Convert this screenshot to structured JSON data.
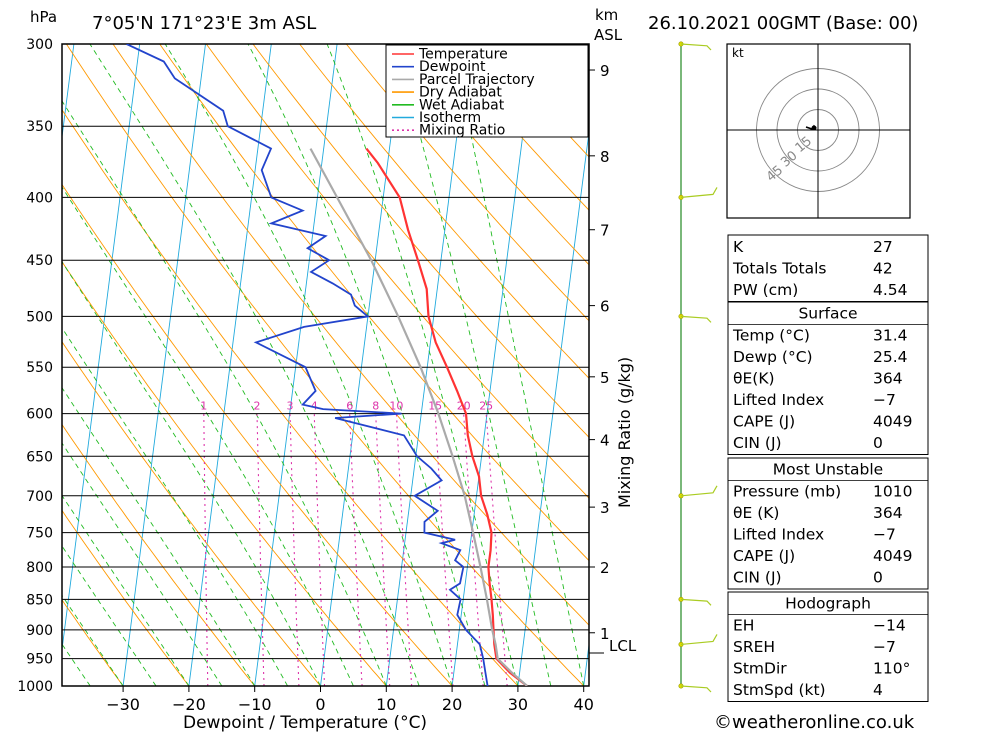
{
  "header": {
    "pressure_unit": "hPa",
    "location": "7°05'N  171°23'E  3m  ASL",
    "km_unit": "km",
    "asl_unit": "ASL",
    "datetime": "26.10.2021  00GMT  (Base: 00)"
  },
  "footer": {
    "x_label": "Dewpoint / Temperature (°C)",
    "copyright": "©weatheronline.co.uk"
  },
  "mixing_ratio_axis_label": "Mixing Ratio (g/kg)",
  "lcl_label": "LCL",
  "legend": [
    {
      "label": "Temperature",
      "color": "#ff3333"
    },
    {
      "label": "Dewpoint",
      "color": "#2244cc"
    },
    {
      "label": "Parcel Trajectory",
      "color": "#aaaaaa"
    },
    {
      "label": "Dry Adiabat",
      "color": "#ff9900"
    },
    {
      "label": "Wet Adiabat",
      "color": "#22bb22"
    },
    {
      "label": "Isotherm",
      "color": "#22aadd"
    },
    {
      "label": "Mixing Ratio",
      "color": "#dd33aa"
    }
  ],
  "chart_data": {
    "type": "line",
    "pressure_levels": [
      300,
      350,
      400,
      450,
      500,
      550,
      600,
      650,
      700,
      750,
      800,
      850,
      900,
      950,
      1000
    ],
    "temp_ticks": [
      -30,
      -20,
      -10,
      0,
      10,
      20,
      30,
      40
    ],
    "xlim": [
      -40,
      40
    ],
    "ylim_hpa": [
      1000,
      300
    ],
    "km_ticks": [
      {
        "label": "9",
        "p": 315
      },
      {
        "label": "8",
        "p": 370
      },
      {
        "label": "7",
        "p": 425
      },
      {
        "label": "6",
        "p": 490
      },
      {
        "label": "5",
        "p": 560
      },
      {
        "label": "4",
        "p": 630
      },
      {
        "label": "3",
        "p": 715
      },
      {
        "label": "2",
        "p": 800
      },
      {
        "label": "1",
        "p": 905
      }
    ],
    "lcl_hpa": 940,
    "mixing_ratio_labels": [
      "1",
      "2",
      "3",
      "4",
      "6",
      "8",
      "10",
      "15",
      "20",
      "25"
    ],
    "mixing_ratio_values": [
      1,
      2,
      3,
      4,
      6,
      8,
      10,
      15,
      20,
      25
    ],
    "series": [
      {
        "name": "Temperature",
        "points": [
          [
            1000,
            31.4
          ],
          [
            975,
            28.5
          ],
          [
            950,
            26.2
          ],
          [
            925,
            25.6
          ],
          [
            900,
            25.2
          ],
          [
            875,
            24.8
          ],
          [
            850,
            24.3
          ],
          [
            825,
            23.7
          ],
          [
            800,
            23.2
          ],
          [
            775,
            23.2
          ],
          [
            750,
            23.0
          ],
          [
            725,
            22.0
          ],
          [
            700,
            20.7
          ],
          [
            675,
            20.0
          ],
          [
            650,
            18.6
          ],
          [
            625,
            17.5
          ],
          [
            600,
            16.8
          ],
          [
            575,
            15.0
          ],
          [
            550,
            13.0
          ],
          [
            525,
            10.8
          ],
          [
            500,
            9.2
          ],
          [
            475,
            8.4
          ],
          [
            450,
            6.5
          ],
          [
            425,
            4.4
          ],
          [
            400,
            2.5
          ],
          [
            375,
            -1.5
          ],
          [
            365,
            -3.5
          ]
        ]
      },
      {
        "name": "Dewpoint",
        "points": [
          [
            1000,
            25.4
          ],
          [
            975,
            24.8
          ],
          [
            950,
            24.2
          ],
          [
            925,
            23.4
          ],
          [
            900,
            21.0
          ],
          [
            875,
            19.4
          ],
          [
            850,
            19.6
          ],
          [
            835,
            17.8
          ],
          [
            825,
            19.2
          ],
          [
            800,
            19.4
          ],
          [
            790,
            18.0
          ],
          [
            775,
            18.6
          ],
          [
            765,
            15.6
          ],
          [
            760,
            17.6
          ],
          [
            750,
            12.8
          ],
          [
            735,
            12.6
          ],
          [
            720,
            14.4
          ],
          [
            700,
            10.6
          ],
          [
            680,
            14.4
          ],
          [
            665,
            12.6
          ],
          [
            650,
            10.2
          ],
          [
            625,
            7.8
          ],
          [
            605,
            -3.0
          ],
          [
            600,
            7.0
          ],
          [
            595,
            -5.0
          ],
          [
            590,
            -8.2
          ],
          [
            575,
            -6.5
          ],
          [
            550,
            -8.5
          ],
          [
            525,
            -16.5
          ],
          [
            510,
            -9.5
          ],
          [
            500,
            0.0
          ],
          [
            490,
            -2.2
          ],
          [
            480,
            -3.0
          ],
          [
            470,
            -6.0
          ],
          [
            460,
            -9.5
          ],
          [
            450,
            -7.0
          ],
          [
            440,
            -10.5
          ],
          [
            430,
            -8.0
          ],
          [
            420,
            -16.5
          ],
          [
            410,
            -12.0
          ],
          [
            400,
            -17.0
          ],
          [
            380,
            -19.0
          ],
          [
            365,
            -18.0
          ],
          [
            350,
            -25.0
          ],
          [
            340,
            -26.0
          ],
          [
            320,
            -34.0
          ],
          [
            310,
            -36.0
          ],
          [
            300,
            -42.0
          ]
        ]
      },
      {
        "name": "Parcel Trajectory",
        "points": [
          [
            1000,
            31.4
          ],
          [
            975,
            28.8
          ],
          [
            950,
            26.4
          ],
          [
            925,
            25.8
          ],
          [
            900,
            25.0
          ],
          [
            850,
            23.6
          ],
          [
            800,
            22.0
          ],
          [
            750,
            20.2
          ],
          [
            700,
            18.2
          ],
          [
            650,
            15.6
          ],
          [
            600,
            12.6
          ],
          [
            550,
            9.0
          ],
          [
            500,
            4.6
          ],
          [
            450,
            -0.6
          ],
          [
            400,
            -7.0
          ],
          [
            365,
            -12.0
          ]
        ]
      }
    ],
    "hodograph": {
      "unit": "kt",
      "ring_labels": [
        "15",
        "30",
        "45"
      ],
      "ring_kt": [
        15,
        30,
        45
      ]
    },
    "wind_profile_hpa": [
      300,
      400,
      500,
      700,
      850,
      925,
      1000
    ]
  },
  "indices_table": {
    "rows": [
      {
        "label": "K",
        "value": "27"
      },
      {
        "label": "Totals Totals",
        "value": "42"
      },
      {
        "label": "PW (cm)",
        "value": "4.54"
      }
    ]
  },
  "surface_table": {
    "title": "Surface",
    "rows": [
      {
        "label": "Temp (°C)",
        "value": "31.4"
      },
      {
        "label": "Dewp (°C)",
        "value": "25.4"
      },
      {
        "label": "θE(K)",
        "value": "364"
      },
      {
        "label": "Lifted Index",
        "value": "−7"
      },
      {
        "label": "CAPE (J)",
        "value": "4049"
      },
      {
        "label": "CIN (J)",
        "value": "0"
      }
    ]
  },
  "unstable_table": {
    "title": "Most Unstable",
    "rows": [
      {
        "label": "Pressure (mb)",
        "value": "1010"
      },
      {
        "label": "θE (K)",
        "value": "364"
      },
      {
        "label": "Lifted Index",
        "value": "−7"
      },
      {
        "label": "CAPE (J)",
        "value": "4049"
      },
      {
        "label": "CIN (J)",
        "value": "0"
      }
    ]
  },
  "hodograph_table": {
    "title": "Hodograph",
    "rows": [
      {
        "label": "EH",
        "value": "−14"
      },
      {
        "label": "SREH",
        "value": "−7"
      },
      {
        "label": "StmDir",
        "value": "110°"
      },
      {
        "label": "StmSpd (kt)",
        "value": "4"
      }
    ]
  }
}
